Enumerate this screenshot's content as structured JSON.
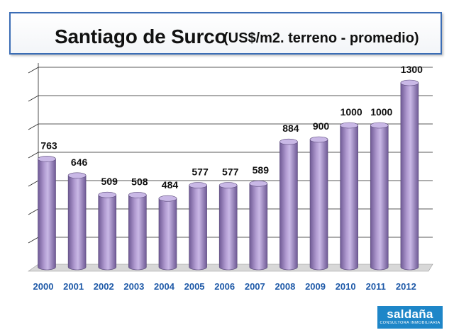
{
  "header": {
    "title": "Santiago de Surco",
    "subtitle": "(US$/m2. terreno - promedio)"
  },
  "chart_data": {
    "type": "bar",
    "title": "Santiago de Surco (US$/m2. terreno - promedio)",
    "xlabel": "",
    "ylabel": "",
    "categories": [
      "2000",
      "2001",
      "2002",
      "2003",
      "2004",
      "2005",
      "2006",
      "2007",
      "2008",
      "2009",
      "2010",
      "2011",
      "2012"
    ],
    "values": [
      763,
      646,
      509,
      508,
      484,
      577,
      577,
      589,
      884,
      900,
      1000,
      1000,
      1300
    ],
    "ylim": [
      0,
      1400
    ],
    "grid": true,
    "legend": "none",
    "colors": {
      "bar": "#b09ad0",
      "bar_dark": "#6f5a95",
      "bar_top": "#c9b8e6",
      "xlabel": "#1f5aa8",
      "grid": "#222222",
      "floor": "#d8d8d8"
    }
  },
  "logo": {
    "name": "saldaña",
    "tagline": "CONSULTORA INMOBILIARIA",
    "color": "#1e86c8"
  }
}
